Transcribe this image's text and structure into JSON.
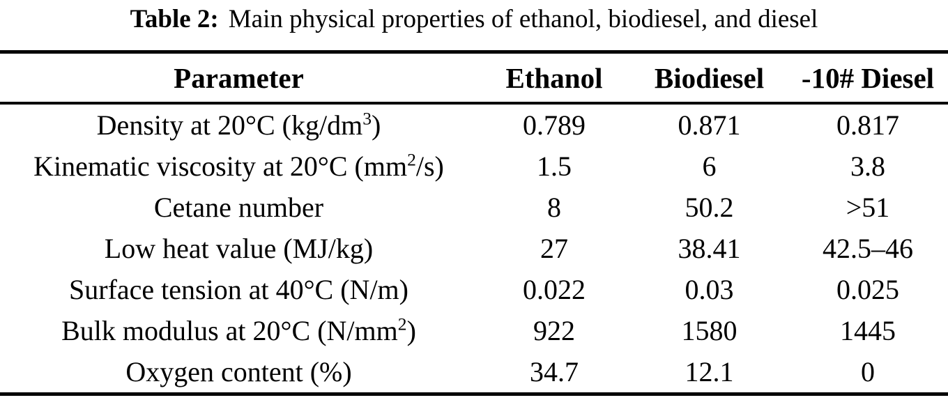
{
  "colors": {
    "background": "#ffffff",
    "text": "#000000",
    "rule": "#000000"
  },
  "caption": {
    "label": "Table 2:",
    "text": "Main physical properties of ethanol, biodiesel, and diesel"
  },
  "table": {
    "columns": [
      "Parameter",
      "Ethanol",
      "Biodiesel",
      "-10# Diesel"
    ],
    "rows": [
      {
        "parameter": [
          {
            "text": "Density at 20°C (kg/dm"
          },
          {
            "text": "3",
            "sup": true
          },
          {
            "text": ")"
          }
        ],
        "values": [
          "0.789",
          "0.871",
          "0.817"
        ]
      },
      {
        "parameter": [
          {
            "text": "Kinematic viscosity at 20°C (mm"
          },
          {
            "text": "2",
            "sup": true
          },
          {
            "text": "/s)"
          }
        ],
        "values": [
          "1.5",
          "6",
          "3.8"
        ]
      },
      {
        "parameter": [
          {
            "text": "Cetane number"
          }
        ],
        "values": [
          "8",
          "50.2",
          ">51"
        ]
      },
      {
        "parameter": [
          {
            "text": "Low heat value (MJ/kg)"
          }
        ],
        "values": [
          "27",
          "38.41",
          "42.5–46"
        ]
      },
      {
        "parameter": [
          {
            "text": "Surface tension at 40°C (N/m)"
          }
        ],
        "values": [
          "0.022",
          "0.03",
          "0.025"
        ]
      },
      {
        "parameter": [
          {
            "text": "Bulk modulus at 20°C (N/mm"
          },
          {
            "text": "2",
            "sup": true
          },
          {
            "text": ")"
          }
        ],
        "values": [
          "922",
          "1580",
          "1445"
        ]
      },
      {
        "parameter": [
          {
            "text": "Oxygen content (%)"
          }
        ],
        "values": [
          "34.7",
          "12.1",
          "0"
        ]
      }
    ]
  }
}
